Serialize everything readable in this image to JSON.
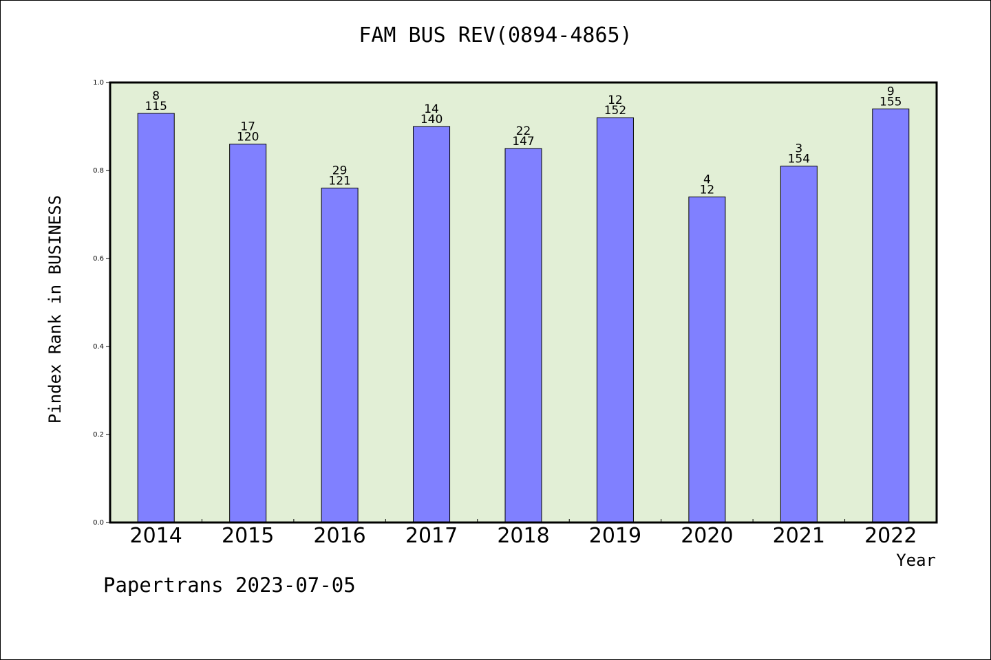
{
  "chart_data": {
    "type": "bar",
    "title": "FAM BUS REV(0894-4865)",
    "xlabel": "Year",
    "ylabel": "Pindex Rank in BUSINESS",
    "categories": [
      "2014",
      "2015",
      "2016",
      "2017",
      "2018",
      "2019",
      "2020",
      "2021",
      "2022"
    ],
    "values": [
      0.93,
      0.86,
      0.76,
      0.9,
      0.85,
      0.92,
      0.74,
      0.81,
      0.94
    ],
    "rank_labels": [
      "8",
      "17",
      "29",
      "14",
      "22",
      "12",
      "4",
      "3",
      "9"
    ],
    "count_labels": [
      "115",
      "120",
      "121",
      "140",
      "147",
      "152",
      "12",
      "154",
      "155"
    ],
    "ylim": [
      0,
      1.0
    ],
    "yticks": [
      "0.0",
      "0.2",
      "0.4",
      "0.6",
      "0.8",
      "1.0"
    ],
    "grid": false,
    "colors": {
      "bar": "#8080ff",
      "plot_background": "#e2efd6",
      "axis": "#000000"
    }
  },
  "footer": {
    "text": "Papertrans 2023-07-05"
  }
}
